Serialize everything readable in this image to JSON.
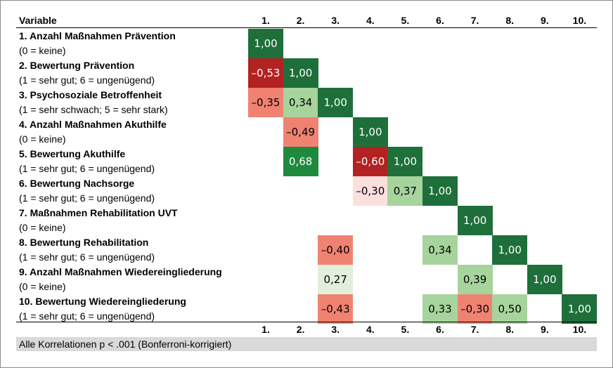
{
  "colors": {
    "strong_pos": "#1e6f3a",
    "mod_pos": "#1f8a3d",
    "weak_pos": "#a6d49c",
    "very_weak_pos": "#e2efdc",
    "strong_neg": "#b22222",
    "mod_neg": "#f08272",
    "weak_neg": "#fbe0dd"
  },
  "chart_data": {
    "type": "heatmap",
    "header_label": "Variable",
    "columns": [
      "1.",
      "2.",
      "3.",
      "4.",
      "5.",
      "6.",
      "7.",
      "8.",
      "9.",
      "10."
    ],
    "rows": [
      {
        "name": "1. Anzahl Maßnahmen Prävention",
        "scale": "(0 = keine)"
      },
      {
        "name": "2. Bewertung Prävention",
        "scale": "(1 = sehr gut; 6 = ungenügend)"
      },
      {
        "name": "3. Psychosoziale Betroffenheit",
        "scale": "(1 = sehr schwach; 5 = sehr stark)"
      },
      {
        "name": "4. Anzahl Maßnahmen Akuthilfe",
        "scale": "(0 = keine)"
      },
      {
        "name": "5. Bewertung Akuthilfe",
        "scale": "(1 = sehr gut; 6 = ungenügend)"
      },
      {
        "name": "6. Bewertung Nachsorge",
        "scale": "(1 = sehr gut; 6 = ungenügend)"
      },
      {
        "name": "7. Maßnahmen Rehabilitation UVT",
        "scale": "(0 = keine)"
      },
      {
        "name": "8. Bewertung Rehabilitation",
        "scale": "(1 = sehr gut; 6 = ungenügend)"
      },
      {
        "name": "9. Anzahl Maßnahmen Wiedereingliederung",
        "scale": "(0 = keine)"
      },
      {
        "name": "10. Bewertung Wiedereingliederung",
        "scale": "(1 = sehr gut; 6 = ungenügend)"
      }
    ],
    "cells": [
      {
        "row": 1,
        "col": 1,
        "value": 1.0,
        "label": "1,00"
      },
      {
        "row": 2,
        "col": 1,
        "value": -0.53,
        "label": "–0,53"
      },
      {
        "row": 2,
        "col": 2,
        "value": 1.0,
        "label": "1,00"
      },
      {
        "row": 3,
        "col": 1,
        "value": -0.35,
        "label": "–0,35"
      },
      {
        "row": 3,
        "col": 2,
        "value": 0.34,
        "label": "0,34"
      },
      {
        "row": 3,
        "col": 3,
        "value": 1.0,
        "label": "1,00"
      },
      {
        "row": 4,
        "col": 2,
        "value": -0.49,
        "label": "–0,49"
      },
      {
        "row": 4,
        "col": 4,
        "value": 1.0,
        "label": "1,00"
      },
      {
        "row": 5,
        "col": 2,
        "value": 0.68,
        "label": "0,68"
      },
      {
        "row": 5,
        "col": 4,
        "value": -0.6,
        "label": "–0,60"
      },
      {
        "row": 5,
        "col": 5,
        "value": 1.0,
        "label": "1,00"
      },
      {
        "row": 6,
        "col": 4,
        "value": -0.3,
        "label": "–0,30"
      },
      {
        "row": 6,
        "col": 5,
        "value": 0.37,
        "label": "0,37"
      },
      {
        "row": 6,
        "col": 6,
        "value": 1.0,
        "label": "1,00"
      },
      {
        "row": 7,
        "col": 7,
        "value": 1.0,
        "label": "1,00"
      },
      {
        "row": 8,
        "col": 3,
        "value": -0.4,
        "label": "–0,40"
      },
      {
        "row": 8,
        "col": 6,
        "value": 0.34,
        "label": "0,34"
      },
      {
        "row": 8,
        "col": 8,
        "value": 1.0,
        "label": "1,00"
      },
      {
        "row": 9,
        "col": 3,
        "value": 0.27,
        "label": "0,27"
      },
      {
        "row": 9,
        "col": 7,
        "value": 0.39,
        "label": "0,39"
      },
      {
        "row": 9,
        "col": 9,
        "value": 1.0,
        "label": "1,00"
      },
      {
        "row": 10,
        "col": 3,
        "value": -0.43,
        "label": "–0,43"
      },
      {
        "row": 10,
        "col": 6,
        "value": 0.33,
        "label": "0,33"
      },
      {
        "row": 10,
        "col": 7,
        "value": -0.3,
        "label": "–0,30"
      },
      {
        "row": 10,
        "col": 8,
        "value": 0.5,
        "label": "0,50"
      },
      {
        "row": 10,
        "col": 10,
        "value": 1.0,
        "label": "1,00"
      }
    ],
    "footnote": "Alle Korrelationen p < .001 (Bonferroni-korrigiert)",
    "grid": false,
    "legend": "none"
  }
}
